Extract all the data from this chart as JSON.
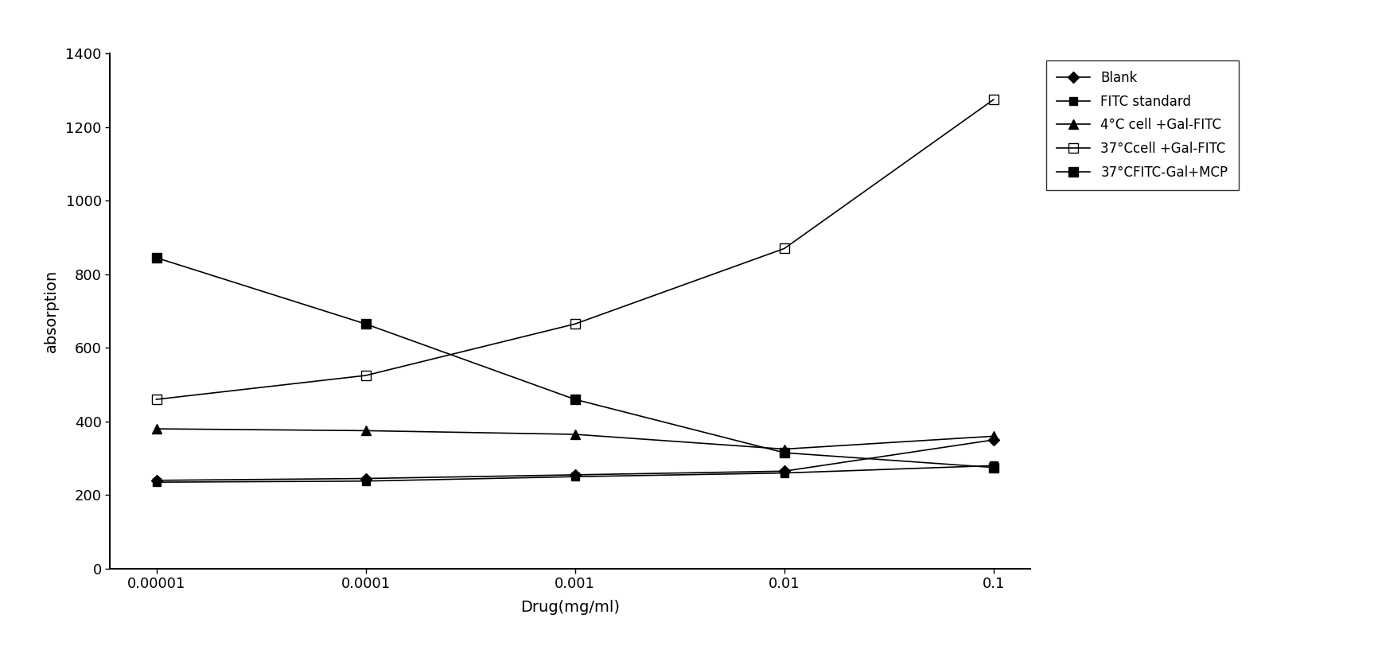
{
  "x_values": [
    1e-05,
    0.0001,
    0.001,
    0.01,
    0.1
  ],
  "x_labels": [
    "0.00001",
    "0.0001",
    "0.001",
    "0.01",
    "0.1"
  ],
  "series": [
    {
      "label": "Blank",
      "values": [
        240,
        245,
        255,
        265,
        350
      ],
      "marker": "D",
      "markersize": 7,
      "fillstyle": "full"
    },
    {
      "label": "FITC standard",
      "values": [
        235,
        238,
        250,
        260,
        280
      ],
      "marker": "s",
      "markersize": 7,
      "fillstyle": "full"
    },
    {
      "label": "4°C cell +Gal-FITC",
      "values": [
        380,
        375,
        365,
        325,
        360
      ],
      "marker": "^",
      "markersize": 8,
      "fillstyle": "full"
    },
    {
      "label": "37°Ccell +Gal-FITC",
      "values": [
        460,
        525,
        665,
        870,
        1275
      ],
      "marker": "s",
      "markersize": 8,
      "fillstyle": "none"
    },
    {
      "label": "37°CFITC-Gal+MCP",
      "values": [
        845,
        665,
        460,
        315,
        275
      ],
      "marker": "s",
      "markersize": 8,
      "fillstyle": "full"
    }
  ],
  "ylabel": "absorption",
  "xlabel": "Drug(mg/ml)",
  "ylim": [
    0,
    1400
  ],
  "yticks": [
    0,
    200,
    400,
    600,
    800,
    1000,
    1200,
    1400
  ],
  "line_color": "#000000",
  "background_color": "#ffffff",
  "legend_loc": "upper right",
  "legend_fontsize": 12,
  "axis_label_fontsize": 14,
  "tick_fontsize": 13,
  "linewidth": 1.2
}
